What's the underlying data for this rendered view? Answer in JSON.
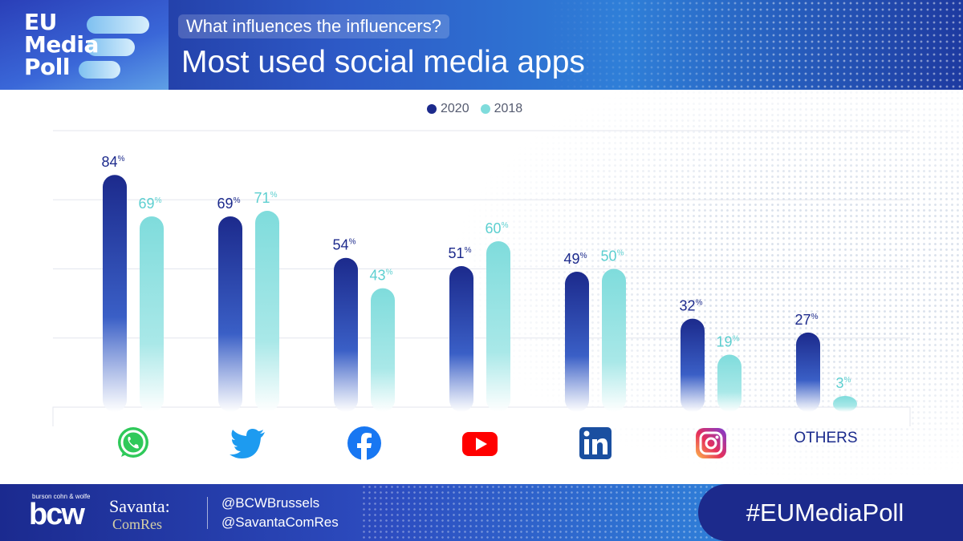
{
  "header": {
    "logo_lines": [
      "EU",
      "Media",
      "Poll"
    ],
    "subtitle": "What influences the influencers?",
    "title": "Most used social media apps"
  },
  "legend": [
    {
      "label": "2020",
      "color": "#1c2a8c"
    },
    {
      "label": "2018",
      "color": "#7fdcdc"
    }
  ],
  "chart_data": {
    "type": "bar",
    "categories": [
      "WhatsApp",
      "Twitter",
      "Facebook",
      "YouTube",
      "LinkedIn",
      "Instagram",
      "OTHERS"
    ],
    "series": [
      {
        "name": "2020",
        "values": [
          84,
          69,
          54,
          51,
          49,
          32,
          27
        ],
        "color": "#1c2a8c"
      },
      {
        "name": "2018",
        "values": [
          69,
          71,
          43,
          60,
          50,
          19,
          3
        ],
        "color": "#7fdcdc"
      }
    ],
    "value_suffix": "%",
    "ylim": [
      0,
      100
    ],
    "grid": true,
    "legend_position": "top-center"
  },
  "icons": [
    "whatsapp-icon",
    "twitter-icon",
    "facebook-icon",
    "youtube-icon",
    "linkedin-icon",
    "instagram-icon"
  ],
  "others_label": "OTHERS",
  "footer": {
    "bcw_small": "burson cohn & wolfe",
    "bcw": "bcw",
    "savanta": "Savanta:",
    "comres": "ComRes",
    "handles": [
      "@BCWBrussels",
      "@SavantaComRes"
    ],
    "hashtag": "#EUMediaPoll"
  }
}
